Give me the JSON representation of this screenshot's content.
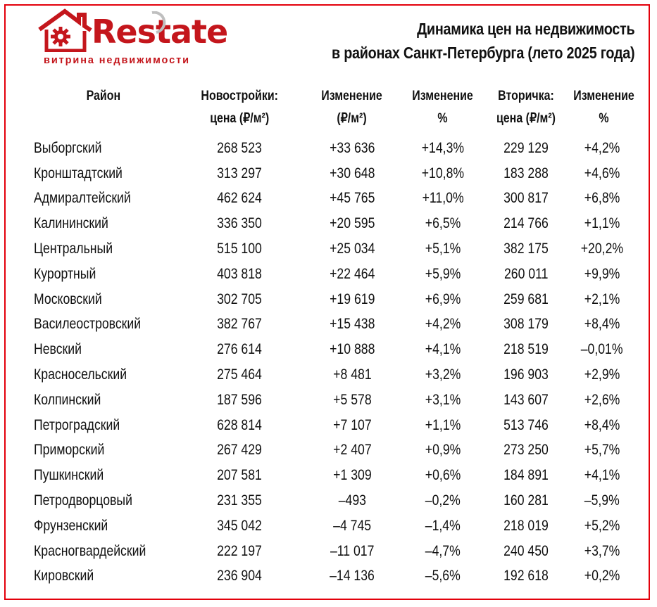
{
  "brand": {
    "name": "Restate",
    "tagline": "витрина недвижимости",
    "accent": "#c4161c"
  },
  "title": {
    "line1": "Динамика цен на недвижимость",
    "line2": "в районах Санкт-Петербурга (лето 2025 года)"
  },
  "table": {
    "columns": [
      "Район",
      "Новостройки:\nцена (₽/м²)",
      "Изменение\n(₽/м²)",
      "Изменение\n%",
      "Вторичка:\nцена (₽/м²)",
      "Изменение\n%"
    ],
    "rows": [
      [
        "Выборгский",
        "268 523",
        "+33 636",
        "+14,3%",
        "229 129",
        "+4,2%"
      ],
      [
        "Кронштадтский",
        "313 297",
        "+30 648",
        "+10,8%",
        "183 288",
        "+4,6%"
      ],
      [
        "Адмиралтейский",
        "462 624",
        "+45 765",
        "+11,0%",
        "300 817",
        "+6,8%"
      ],
      [
        "Калининский",
        "336 350",
        "+20 595",
        "+6,5%",
        "214 766",
        "+1,1%"
      ],
      [
        "Центральный",
        "515 100",
        "+25 034",
        "+5,1%",
        "382 175",
        "+20,2%"
      ],
      [
        "Курортный",
        "403 818",
        "+22 464",
        "+5,9%",
        "260 011",
        "+9,9%"
      ],
      [
        "Московский",
        "302 705",
        "+19 619",
        "+6,9%",
        "259 681",
        "+2,1%"
      ],
      [
        "Василеостровский",
        "382 767",
        "+15 438",
        "+4,2%",
        "308 179",
        "+8,4%"
      ],
      [
        "Невский",
        "276 614",
        "+10 888",
        "+4,1%",
        "218 519",
        "–0,01%"
      ],
      [
        "Красносельский",
        "275 464",
        "+8 481",
        "+3,2%",
        "196 903",
        "+2,9%"
      ],
      [
        "Колпинский",
        "187 596",
        "+5 578",
        "+3,1%",
        "143 607",
        "+2,6%"
      ],
      [
        "Петроградский",
        "628 814",
        "+7 107",
        "+1,1%",
        "513 746",
        "+8,4%"
      ],
      [
        "Приморский",
        "267 429",
        "+2 407",
        "+0,9%",
        "273 250",
        "+5,7%"
      ],
      [
        "Пушкинский",
        "207 581",
        "+1 309",
        "+0,6%",
        "184 891",
        "+4,1%"
      ],
      [
        "Петродворцовый",
        "231 355",
        "–493",
        "–0,2%",
        "160 281",
        "–5,9%"
      ],
      [
        "Фрунзенский",
        "345 042",
        "–4 745",
        "–1,4%",
        "218 019",
        "+5,2%"
      ],
      [
        "Красногвардейский",
        "222 197",
        "–11 017",
        "–4,7%",
        "240 450",
        "+3,7%"
      ],
      [
        "Кировский",
        "236 904",
        "–14 136",
        "–5,6%",
        "192 618",
        "+0,2%"
      ]
    ]
  }
}
